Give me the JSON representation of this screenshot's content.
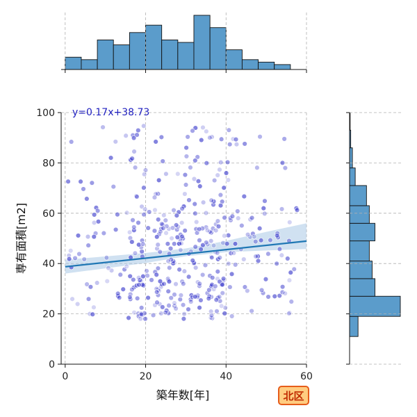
{
  "chart_data": {
    "type": "scatter",
    "title": "",
    "xlabel": "築年数[年]",
    "ylabel": "専有面積[m2]",
    "xlim": [
      -1,
      60
    ],
    "ylim": [
      0,
      100
    ],
    "xticks": [
      "0",
      "20",
      "40",
      "60"
    ],
    "yticks": [
      "0",
      "20",
      "40",
      "60",
      "80",
      "100"
    ],
    "grid": true,
    "regression": {
      "slope": 0.17,
      "intercept": 38.73,
      "label": "y=0.17x+38.73",
      "ci_band": [
        [
          0,
          36.0,
          41.5
        ],
        [
          20,
          40.2,
          44.2
        ],
        [
          30,
          42.9,
          46.0
        ],
        [
          40,
          44.5,
          49.0
        ],
        [
          50,
          45.2,
          52.6
        ],
        [
          60,
          45.8,
          56.0
        ]
      ]
    },
    "marginal_x": {
      "bin_edges": [
        0,
        4,
        8,
        12,
        16,
        20,
        24,
        28,
        32,
        36,
        40,
        44,
        48,
        52,
        56
      ],
      "counts": [
        5,
        4,
        12,
        10,
        15,
        18,
        12,
        11,
        22,
        17,
        8,
        4,
        3,
        2
      ]
    },
    "marginal_y": {
      "bin_edges": [
        11,
        19,
        27,
        34,
        41,
        49,
        56,
        63,
        71,
        78,
        86,
        93,
        100
      ],
      "counts": [
        3,
        18,
        9,
        8,
        7,
        9,
        7,
        6,
        2,
        1,
        0.4,
        0.2
      ]
    },
    "badge": "北区",
    "colors": {
      "scatter": "#3a3acc",
      "line": "#1f77b4",
      "band": "#aac8e6",
      "hist_fill": "#5b9ccb",
      "badge_bg": "#ffcc80",
      "badge_border": "#e65c1a",
      "badge_text": "#c02a00",
      "grid": "#b0b0b0"
    }
  }
}
